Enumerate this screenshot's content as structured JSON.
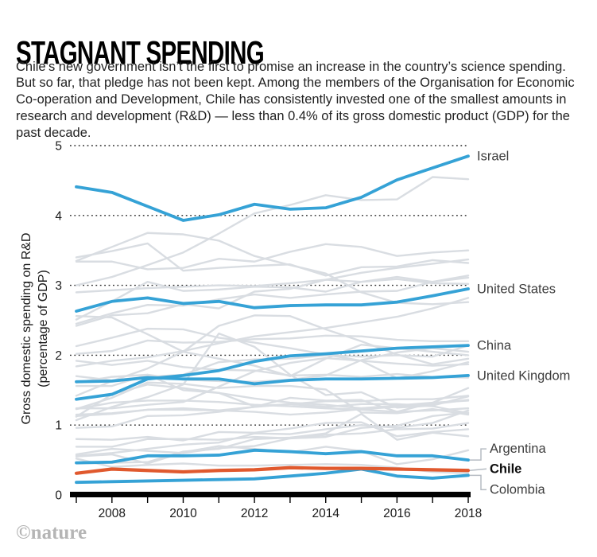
{
  "header": {
    "title": "STAGNANT SPENDING",
    "intro": "Chile’s new government isn’t the first to promise an increase in the country’s science spending. But so far, that pledge has not been kept. Among the members of the Organisation for Economic Co-operation and Development, Chile has consistently invested one of the smallest amounts in research and development (R&D) — less than 0.4% of its gross domestic product (GDP) for the past decade."
  },
  "credit": "©nature",
  "colors": {
    "highlight_blue": "#35a2d6",
    "highlight_orange": "#e0592e",
    "background_line": "#d9dde2",
    "grid_dots": "#2a2a2a",
    "axis_black": "#000000",
    "connector_gray": "#b6bcc3"
  },
  "chart_data": {
    "type": "line",
    "title": "STAGNANT SPENDING",
    "ylabel": "Gross domestic spending on R&D (percentage of GDP)",
    "ylabel_lines": [
      "Gross domestic spending on R&D",
      "(percentage of GDP)"
    ],
    "x": [
      2007,
      2008,
      2009,
      2010,
      2011,
      2012,
      2013,
      2014,
      2015,
      2016,
      2017,
      2018
    ],
    "x_tick_labels": [
      "2008",
      "2010",
      "2012",
      "2014",
      "2016",
      "2018"
    ],
    "yticks": [
      0,
      1,
      2,
      3,
      4,
      5
    ],
    "ylim": [
      0,
      5
    ],
    "grid": "horizontal-dotted",
    "legend_position": "labels-at-right-edge",
    "highlight_series": [
      {
        "name": "Israel",
        "color": "#35a2d6",
        "label_bold": false,
        "connector": "none",
        "values": [
          4.41,
          4.33,
          4.13,
          3.93,
          4.01,
          4.16,
          4.09,
          4.11,
          4.26,
          4.51,
          4.68,
          4.85
        ]
      },
      {
        "name": "United States",
        "color": "#35a2d6",
        "label_bold": false,
        "connector": "none",
        "values": [
          2.63,
          2.77,
          2.82,
          2.74,
          2.77,
          2.68,
          2.71,
          2.72,
          2.72,
          2.76,
          2.85,
          2.95
        ]
      },
      {
        "name": "China",
        "color": "#35a2d6",
        "label_bold": false,
        "connector": "none",
        "values": [
          1.37,
          1.44,
          1.66,
          1.71,
          1.78,
          1.91,
          1.99,
          2.02,
          2.06,
          2.1,
          2.12,
          2.14
        ]
      },
      {
        "name": "United Kingdom",
        "color": "#35a2d6",
        "label_bold": false,
        "connector": "none",
        "values": [
          1.62,
          1.63,
          1.68,
          1.66,
          1.66,
          1.59,
          1.64,
          1.66,
          1.66,
          1.67,
          1.68,
          1.71
        ]
      },
      {
        "name": "Argentina",
        "color": "#35a2d6",
        "label_bold": false,
        "connector": "elbow-up",
        "values": [
          0.46,
          0.47,
          0.56,
          0.56,
          0.57,
          0.64,
          0.62,
          0.59,
          0.62,
          0.56,
          0.56,
          0.5
        ]
      },
      {
        "name": "Colombia",
        "color": "#35a2d6",
        "label_bold": false,
        "connector": "elbow-down",
        "values": [
          0.18,
          0.19,
          0.2,
          0.21,
          0.22,
          0.23,
          0.27,
          0.31,
          0.37,
          0.27,
          0.24,
          0.28
        ]
      },
      {
        "name": "Chile",
        "color": "#e0592e",
        "label_bold": true,
        "connector": "straight",
        "values": [
          0.31,
          0.37,
          0.35,
          0.33,
          0.35,
          0.36,
          0.39,
          0.38,
          0.38,
          0.37,
          0.36,
          0.35
        ]
      }
    ],
    "background_series": [
      [
        3.0,
        3.12,
        3.29,
        3.47,
        3.74,
        4.03,
        4.15,
        4.29,
        4.22,
        4.23,
        4.55,
        4.52
      ],
      [
        3.4,
        3.49,
        3.6,
        3.21,
        3.25,
        3.28,
        3.3,
        3.14,
        3.26,
        3.27,
        3.36,
        3.32
      ],
      [
        3.35,
        3.55,
        3.75,
        3.73,
        3.64,
        3.42,
        3.29,
        3.17,
        2.9,
        2.75,
        2.73,
        2.76
      ],
      [
        3.34,
        3.34,
        3.23,
        3.25,
        3.38,
        3.34,
        3.48,
        3.59,
        3.55,
        3.42,
        3.47,
        3.5
      ],
      [
        2.9,
        2.93,
        2.96,
        2.98,
        3.0,
        2.99,
        3.03,
        3.08,
        3.18,
        3.25,
        3.31,
        3.37
      ],
      [
        2.45,
        2.6,
        2.72,
        2.71,
        2.8,
        2.87,
        2.82,
        2.87,
        2.91,
        2.92,
        3.05,
        3.11
      ],
      [
        2.51,
        2.77,
        3.05,
        2.92,
        2.94,
        2.98,
        2.97,
        2.91,
        3.05,
        3.09,
        3.03,
        3.02
      ],
      [
        2.42,
        2.57,
        2.6,
        2.73,
        2.67,
        2.91,
        2.95,
        3.08,
        3.05,
        3.12,
        3.05,
        3.14
      ],
      [
        2.56,
        2.54,
        2.3,
        2.05,
        1.95,
        1.85,
        1.7,
        1.95,
        2.15,
        2.1,
        2.05,
        2.0
      ],
      [
        2.02,
        2.06,
        2.21,
        2.18,
        2.19,
        2.23,
        2.24,
        2.28,
        2.27,
        2.22,
        2.2,
        2.2
      ],
      [
        1.84,
        1.92,
        1.97,
        2.06,
        2.17,
        2.27,
        2.33,
        2.39,
        2.47,
        2.55,
        2.67,
        2.82
      ],
      [
        1.7,
        1.64,
        1.69,
        1.72,
        1.9,
        1.94,
        1.95,
        2.0,
        1.98,
        2.0,
        1.98,
        2.14
      ],
      [
        1.56,
        1.56,
        1.72,
        1.65,
        1.63,
        1.62,
        1.65,
        1.71,
        1.93,
        2.04,
        2.1,
        2.05
      ],
      [
        1.92,
        1.86,
        1.92,
        1.83,
        1.79,
        1.78,
        1.71,
        1.72,
        1.69,
        1.73,
        1.69,
        1.68
      ],
      [
        2.13,
        2.25,
        2.38,
        2.37,
        2.25,
        2.18,
        2.1,
        2.01,
        1.92,
        1.88,
        1.85,
        1.87
      ],
      [
        1.42,
        1.63,
        1.81,
        2.05,
        2.42,
        2.57,
        2.56,
        2.37,
        2.2,
        2.01,
        1.87,
        1.95
      ],
      [
        1.24,
        1.24,
        1.29,
        1.33,
        1.55,
        1.77,
        1.89,
        1.96,
        1.92,
        1.67,
        1.77,
        1.9
      ],
      [
        1.07,
        1.26,
        1.4,
        1.58,
        2.31,
        2.12,
        1.72,
        1.43,
        1.47,
        1.25,
        1.28,
        1.41
      ],
      [
        1.61,
        1.69,
        1.72,
        1.5,
        1.46,
        1.27,
        1.3,
        1.26,
        1.3,
        1.3,
        1.27,
        1.17
      ],
      [
        1.23,
        1.39,
        1.61,
        1.59,
        1.53,
        1.56,
        1.56,
        1.51,
        1.18,
        1.17,
        1.23,
        1.15
      ],
      [
        1.12,
        1.44,
        1.58,
        1.53,
        1.46,
        1.38,
        1.32,
        1.29,
        1.24,
        1.28,
        1.32,
        1.35
      ],
      [
        1.13,
        1.16,
        1.22,
        1.22,
        1.21,
        1.26,
        1.3,
        1.34,
        1.34,
        1.37,
        1.37,
        1.42
      ],
      [
        1.23,
        1.32,
        1.35,
        1.35,
        1.33,
        1.29,
        1.27,
        1.24,
        1.22,
        1.19,
        1.21,
        1.24
      ],
      [
        0.96,
        0.98,
        1.13,
        1.14,
        1.19,
        1.26,
        1.39,
        1.35,
        1.36,
        1.19,
        1.32,
        1.53
      ],
      [
        1.15,
        1.17,
        1.22,
        1.24,
        1.21,
        1.19,
        1.15,
        1.18,
        1.23,
        1.26,
        1.3,
        1.36
      ],
      [
        0.8,
        0.79,
        0.83,
        0.78,
        0.9,
        0.89,
        0.95,
        1.03,
        1.04,
        0.84,
        0.9,
        0.94
      ],
      [
        0.56,
        0.6,
        0.66,
        0.72,
        0.75,
        0.88,
        0.87,
        0.94,
        1.0,
        0.96,
        1.03,
        1.21
      ],
      [
        0.58,
        0.66,
        0.63,
        0.6,
        0.67,
        0.7,
        0.81,
        0.83,
        0.96,
        0.99,
        1.13,
        1.18
      ],
      [
        0.69,
        0.69,
        0.8,
        0.8,
        0.79,
        0.83,
        0.81,
        0.86,
        0.88,
        0.94,
        0.95,
        1.03
      ],
      [
        0.45,
        0.46,
        0.47,
        0.62,
        0.66,
        0.8,
        0.82,
        0.88,
        1.16,
        0.79,
        0.89,
        0.84
      ],
      [
        0.55,
        0.58,
        0.45,
        0.61,
        0.7,
        0.66,
        0.61,
        0.69,
        0.63,
        0.44,
        0.51,
        0.64
      ],
      [
        0.52,
        0.4,
        0.43,
        0.45,
        0.42,
        0.42,
        0.43,
        0.44,
        0.43,
        0.39,
        0.33,
        0.31
      ]
    ]
  }
}
